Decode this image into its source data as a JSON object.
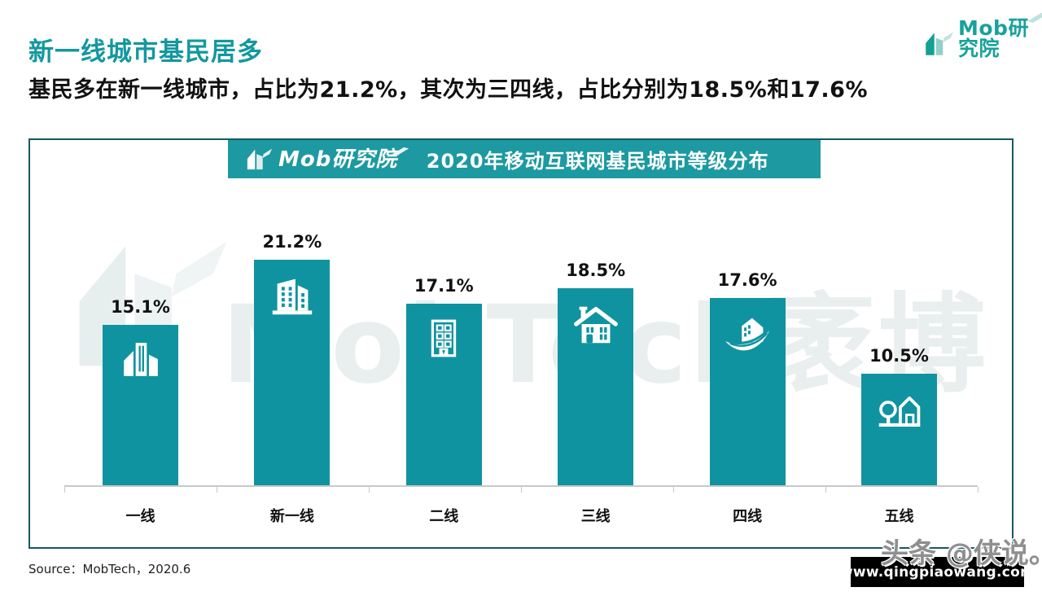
{
  "page": {
    "title": "新一线城市基民居多",
    "subtitle": "基民多在新一线城市，占比为21.2%，其次为三四线，占比分别为18.5%和17.6%",
    "source_label": "Source：MobTech，2020.6"
  },
  "brand": {
    "logo_text": "Mob研究院",
    "banner_title": "2020年移动互联网基民城市等级分布"
  },
  "watermarks": {
    "chart_text": "MobTech袤博",
    "footer_url": "www.qingpiaowang.com",
    "footer_credit": "头条 @侠说。"
  },
  "colors": {
    "title_teal": "#13989f",
    "bar_teal": "#0f93a0",
    "banner_teal": "#1d99a1",
    "frame_border": "#145a62",
    "watermark_gray": "#e9efee",
    "text_black": "#111111",
    "footer_bar_black": "#000000",
    "credit_gray": "#8f8f8f",
    "axis_gray": "#c8c8c8"
  },
  "chart_data": {
    "type": "bar",
    "title": "2020年移动互联网基民城市等级分布",
    "categories": [
      "一线",
      "新一线",
      "二线",
      "三线",
      "四线",
      "五线"
    ],
    "values": [
      15.1,
      21.2,
      17.1,
      18.5,
      17.6,
      10.5
    ],
    "labels": [
      "15.1%",
      "21.2%",
      "17.1%",
      "18.5%",
      "17.6%",
      "10.5%"
    ],
    "unit": "%",
    "icons": [
      "city-skyline",
      "office-buildings",
      "apartment-building",
      "house",
      "leaf-house",
      "tree-house"
    ],
    "xlabel": "",
    "ylabel": "",
    "ylim": [
      0,
      23
    ],
    "grid": false,
    "legend": false,
    "bar_color": "#0f93a0"
  }
}
